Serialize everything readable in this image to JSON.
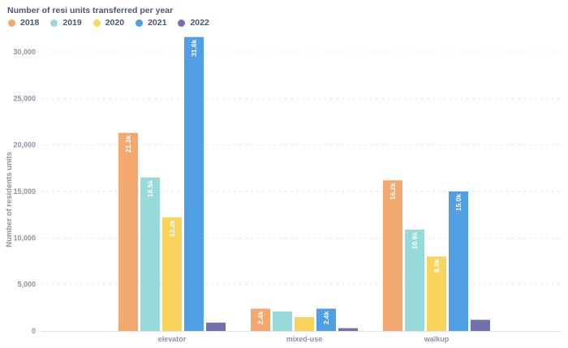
{
  "chart_data": {
    "type": "bar",
    "title": "Number of resi units transferred per year",
    "xlabel": "",
    "ylabel": "Number of residents units",
    "ylim": [
      0,
      30000
    ],
    "yticks": [
      0,
      5000,
      10000,
      15000,
      20000,
      25000,
      30000
    ],
    "ytick_labels": [
      "0",
      "5,000",
      "10,000",
      "15,000",
      "20,000",
      "25,000",
      "30,000"
    ],
    "grid": true,
    "legend_position": "top-left",
    "categories": [
      "elevator",
      "mixed-use",
      "walkup"
    ],
    "series": [
      {
        "name": "2018",
        "color": "#f2a86f",
        "values": [
          21300,
          2400,
          16200
        ],
        "labels": [
          "21.3k",
          "2.4k",
          "16.2k"
        ]
      },
      {
        "name": "2019",
        "color": "#98d9d9",
        "values": [
          16500,
          2100,
          10900
        ],
        "labels": [
          "16.5k",
          "",
          "10.9k"
        ]
      },
      {
        "name": "2020",
        "color": "#f9d45c",
        "values": [
          12200,
          1500,
          8000
        ],
        "labels": [
          "12.2k",
          "",
          "8.0k"
        ]
      },
      {
        "name": "2021",
        "color": "#509ee3",
        "values": [
          31600,
          2400,
          15000
        ],
        "labels": [
          "31.6k",
          "2.4k",
          "15.0k"
        ]
      },
      {
        "name": "2022",
        "color": "#7172ad",
        "values": [
          900,
          300,
          1200
        ],
        "labels": [
          "",
          "",
          ""
        ]
      }
    ]
  }
}
